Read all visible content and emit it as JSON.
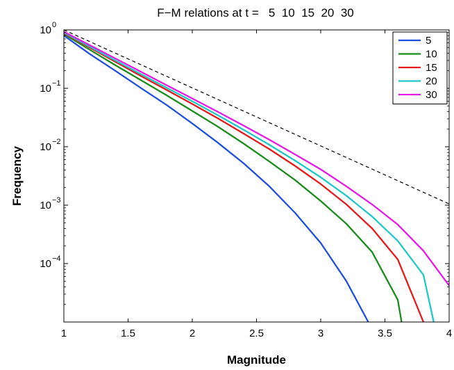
{
  "chart_data": {
    "type": "line",
    "title": "F−M relations at t =   5  10  15  20  30",
    "xlabel": "Magnitude",
    "ylabel": "Frequency",
    "xlim": [
      1,
      4
    ],
    "ylim": [
      1e-05,
      1
    ],
    "yscale": "log",
    "grid": false,
    "legend_position": "top-right",
    "x_ticks": [
      "1",
      "1.5",
      "2",
      "2.5",
      "3",
      "3.5",
      "4"
    ],
    "y_ticks": [
      {
        "base": "10",
        "exp": "0"
      },
      {
        "base": "10",
        "exp": "−1"
      },
      {
        "base": "10",
        "exp": "−2"
      },
      {
        "base": "10",
        "exp": "−3"
      },
      {
        "base": "10",
        "exp": "−4"
      }
    ],
    "series": [
      {
        "name": "5",
        "color": "#1f4fe0",
        "x": [
          1.0,
          1.2,
          1.4,
          1.6,
          1.8,
          2.0,
          2.2,
          2.4,
          2.6,
          2.8,
          3.0,
          3.2,
          3.37
        ],
        "y": [
          0.8,
          0.39,
          0.2,
          0.101,
          0.052,
          0.025,
          0.0117,
          0.0052,
          0.0021,
          0.00074,
          0.000225,
          5e-05,
          1e-05
        ]
      },
      {
        "name": "10",
        "color": "#1a8c1a",
        "x": [
          1.0,
          1.2,
          1.4,
          1.6,
          1.8,
          2.0,
          2.2,
          2.4,
          2.6,
          2.8,
          3.0,
          3.2,
          3.4,
          3.6,
          3.63
        ],
        "y": [
          0.85,
          0.46,
          0.25,
          0.138,
          0.076,
          0.041,
          0.022,
          0.0113,
          0.0056,
          0.0027,
          0.00118,
          0.00048,
          0.000158,
          2.4e-05,
          1e-05
        ]
      },
      {
        "name": "15",
        "color": "#e61a1a",
        "x": [
          1.0,
          1.2,
          1.4,
          1.6,
          1.8,
          2.0,
          2.2,
          2.4,
          2.6,
          2.8,
          3.0,
          3.2,
          3.4,
          3.6,
          3.8
        ],
        "y": [
          0.88,
          0.5,
          0.285,
          0.163,
          0.094,
          0.054,
          0.0305,
          0.0168,
          0.0091,
          0.0047,
          0.0023,
          0.00103,
          0.0004,
          0.000118,
          1e-05
        ]
      },
      {
        "name": "20",
        "color": "#1fc8c8",
        "x": [
          1.0,
          1.2,
          1.4,
          1.6,
          1.8,
          2.0,
          2.2,
          2.4,
          2.6,
          2.8,
          3.0,
          3.2,
          3.4,
          3.6,
          3.8,
          3.88
        ],
        "y": [
          0.9,
          0.52,
          0.3,
          0.175,
          0.102,
          0.06,
          0.0345,
          0.0195,
          0.0108,
          0.0058,
          0.003,
          0.00145,
          0.00064,
          0.000245,
          6.4e-05,
          1e-05
        ]
      },
      {
        "name": "30",
        "color": "#e61ae6",
        "x": [
          1.0,
          1.2,
          1.4,
          1.6,
          1.8,
          2.0,
          2.2,
          2.4,
          2.6,
          2.8,
          3.0,
          3.2,
          3.4,
          3.6,
          3.8,
          4.0
        ],
        "y": [
          0.93,
          0.55,
          0.325,
          0.192,
          0.113,
          0.067,
          0.0395,
          0.023,
          0.0132,
          0.0074,
          0.0041,
          0.0021,
          0.00103,
          0.000465,
          0.000165,
          4.2e-05
        ]
      },
      {
        "name": "",
        "color": "#000000",
        "dashed": true,
        "x": [
          1.0,
          4.0
        ],
        "y": [
          1.0,
          0.00105
        ]
      }
    ]
  }
}
